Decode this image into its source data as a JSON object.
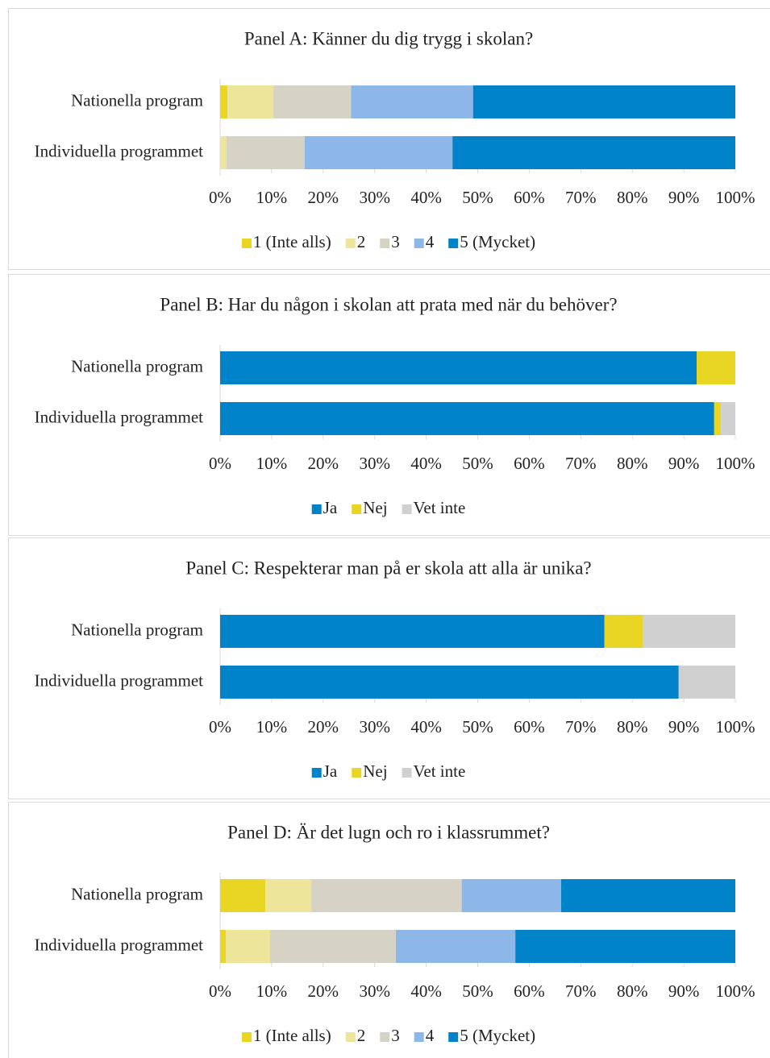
{
  "chart_data": [
    {
      "type": "bar",
      "orientation": "horizontal",
      "stacked": true,
      "title": "Panel A: Känner du dig trygg i skolan?",
      "categories": [
        "Nationella program",
        "Individuella programmet"
      ],
      "series": [
        {
          "name": "1 (Inte alls)",
          "color": "#e8d524",
          "values": [
            1.4,
            0
          ]
        },
        {
          "name": "2",
          "color": "#ede59a",
          "values": [
            8.9,
            1.2
          ]
        },
        {
          "name": "3",
          "color": "#d6d3c4",
          "values": [
            15.1,
            15.2
          ]
        },
        {
          "name": "4",
          "color": "#8db7e6",
          "values": [
            23.7,
            28.7
          ]
        },
        {
          "name": "5 (Mycket)",
          "color": "#0083c8",
          "values": [
            50.9,
            54.9
          ]
        }
      ],
      "xlim": [
        0,
        100
      ],
      "xticks": [
        {
          "value": 0,
          "label": "0%"
        },
        {
          "value": 10,
          "label": "10%"
        },
        {
          "value": 20,
          "label": "20%"
        },
        {
          "value": 30,
          "label": "30%"
        },
        {
          "value": 40,
          "label": "40%"
        },
        {
          "value": 50,
          "label": "50%"
        },
        {
          "value": 60,
          "label": "60%"
        },
        {
          "value": 70,
          "label": "70%"
        },
        {
          "value": 80,
          "label": "80%"
        },
        {
          "value": 90,
          "label": "90%"
        },
        {
          "value": 100,
          "label": "100%"
        }
      ],
      "legend": "bottom"
    },
    {
      "type": "bar",
      "orientation": "horizontal",
      "stacked": true,
      "title": "Panel B: Har du någon i skolan att prata med när du behöver?",
      "categories": [
        "Nationella program",
        "Individuella programmet"
      ],
      "series": [
        {
          "name": "Ja",
          "color": "#0083c8",
          "values": [
            92.5,
            95.9
          ]
        },
        {
          "name": "Nej",
          "color": "#e8d524",
          "values": [
            7.5,
            1.3
          ]
        },
        {
          "name": "Vet inte",
          "color": "#d0d0d0",
          "values": [
            0,
            2.8
          ]
        }
      ],
      "xlim": [
        0,
        100
      ],
      "xticks": [
        {
          "value": 0,
          "label": "0%"
        },
        {
          "value": 10,
          "label": "10%"
        },
        {
          "value": 20,
          "label": "20%"
        },
        {
          "value": 30,
          "label": "30%"
        },
        {
          "value": 40,
          "label": "40%"
        },
        {
          "value": 50,
          "label": "50%"
        },
        {
          "value": 60,
          "label": "60%"
        },
        {
          "value": 70,
          "label": "70%"
        },
        {
          "value": 80,
          "label": "80%"
        },
        {
          "value": 90,
          "label": "90%"
        },
        {
          "value": 100,
          "label": "100%"
        }
      ],
      "legend": "bottom"
    },
    {
      "type": "bar",
      "orientation": "horizontal",
      "stacked": true,
      "title": "Panel C: Respekterar man på er skola att alla är unika?",
      "categories": [
        "Nationella program",
        "Individuella programmet"
      ],
      "series": [
        {
          "name": "Ja",
          "color": "#0083c8",
          "values": [
            74.6,
            89.0
          ]
        },
        {
          "name": "Nej",
          "color": "#e8d524",
          "values": [
            7.4,
            0
          ]
        },
        {
          "name": "Vet inte",
          "color": "#d0d0d0",
          "values": [
            18.0,
            11.0
          ]
        }
      ],
      "xlim": [
        0,
        100
      ],
      "xticks": [
        {
          "value": 0,
          "label": "0%"
        },
        {
          "value": 10,
          "label": "10%"
        },
        {
          "value": 20,
          "label": "20%"
        },
        {
          "value": 30,
          "label": "30%"
        },
        {
          "value": 40,
          "label": "40%"
        },
        {
          "value": 50,
          "label": "50%"
        },
        {
          "value": 60,
          "label": "60%"
        },
        {
          "value": 70,
          "label": "70%"
        },
        {
          "value": 80,
          "label": "80%"
        },
        {
          "value": 90,
          "label": "90%"
        },
        {
          "value": 100,
          "label": "100%"
        }
      ],
      "legend": "bottom"
    },
    {
      "type": "bar",
      "orientation": "horizontal",
      "stacked": true,
      "title": "Panel D: Är det lugn och ro i klassrummet?",
      "categories": [
        "Nationella program",
        "Individuella programmet"
      ],
      "series": [
        {
          "name": "1 (Inte alls)",
          "color": "#e8d524",
          "values": [
            8.8,
            1.1
          ]
        },
        {
          "name": "2",
          "color": "#ede59a",
          "values": [
            8.9,
            8.6
          ]
        },
        {
          "name": "3",
          "color": "#d6d3c4",
          "values": [
            29.2,
            24.4
          ]
        },
        {
          "name": "4",
          "color": "#8db7e6",
          "values": [
            19.3,
            23.2
          ]
        },
        {
          "name": "5 (Mycket)",
          "color": "#0083c8",
          "values": [
            33.8,
            42.7
          ]
        }
      ],
      "xlim": [
        0,
        100
      ],
      "xticks": [
        {
          "value": 0,
          "label": "0%"
        },
        {
          "value": 10,
          "label": "10%"
        },
        {
          "value": 20,
          "label": "20%"
        },
        {
          "value": 30,
          "label": "30%"
        },
        {
          "value": 40,
          "label": "40%"
        },
        {
          "value": 50,
          "label": "50%"
        },
        {
          "value": 60,
          "label": "60%"
        },
        {
          "value": 70,
          "label": "70%"
        },
        {
          "value": 80,
          "label": "80%"
        },
        {
          "value": 90,
          "label": "90%"
        },
        {
          "value": 100,
          "label": "100%"
        }
      ],
      "legend": "bottom"
    }
  ]
}
